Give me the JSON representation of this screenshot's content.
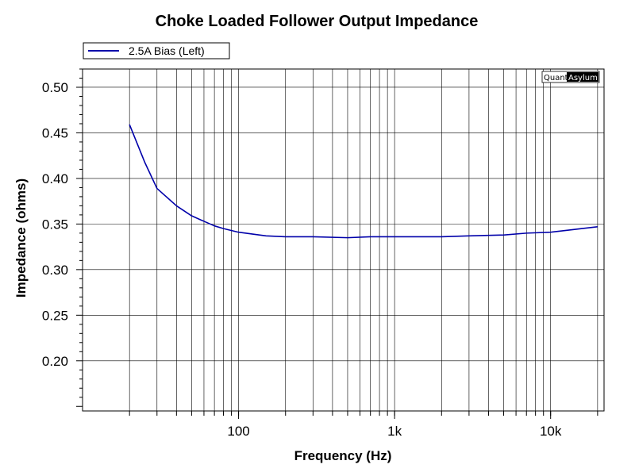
{
  "chart_data": {
    "type": "line",
    "title": "Choke Loaded Follower Output Impedance",
    "xlabel": "Frequency (Hz)",
    "ylabel": "Impedance (ohms)",
    "x_scale": "log",
    "xlim": [
      10,
      22000
    ],
    "ylim": [
      0.145,
      0.52
    ],
    "grid": true,
    "legend_position": "top-left",
    "x_ticks": [
      {
        "value": 100,
        "label": "100"
      },
      {
        "value": 1000,
        "label": "1k"
      },
      {
        "value": 10000,
        "label": "10k"
      }
    ],
    "y_ticks": [
      {
        "value": 0.5,
        "label": "0.50"
      },
      {
        "value": 0.45,
        "label": "0.45"
      },
      {
        "value": 0.4,
        "label": "0.40"
      },
      {
        "value": 0.35,
        "label": "0.35"
      },
      {
        "value": 0.3,
        "label": "0.30"
      },
      {
        "value": 0.25,
        "label": "0.25"
      },
      {
        "value": 0.2,
        "label": "0.20"
      }
    ],
    "series": [
      {
        "name": "2.5A Bias (Left)",
        "color": "#0000aa",
        "x": [
          20,
          25,
          30,
          40,
          50,
          60,
          70,
          80,
          100,
          150,
          200,
          300,
          500,
          700,
          1000,
          2000,
          3000,
          5000,
          7000,
          10000,
          20000
        ],
        "y": [
          0.459,
          0.418,
          0.389,
          0.37,
          0.359,
          0.353,
          0.348,
          0.345,
          0.341,
          0.337,
          0.336,
          0.336,
          0.335,
          0.336,
          0.336,
          0.336,
          0.337,
          0.338,
          0.34,
          0.341,
          0.347
        ]
      }
    ]
  },
  "watermark": {
    "part1": "Quant",
    "part2": "Asylum"
  },
  "colors": {
    "grid": "#000000",
    "line": "#0000aa",
    "background": "#ffffff"
  }
}
